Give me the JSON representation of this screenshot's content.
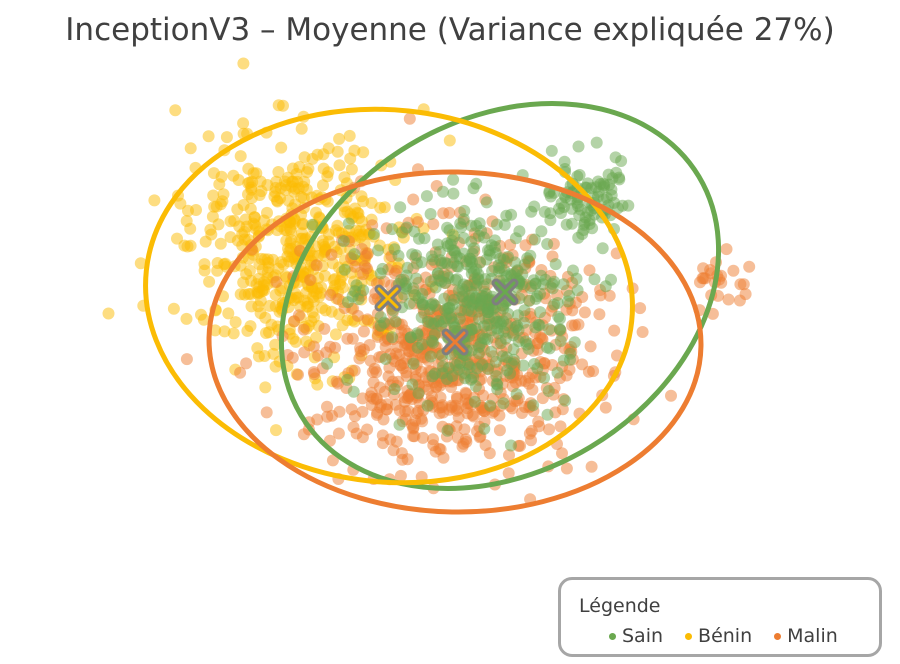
{
  "title": "InceptionV3 – Moyenne (Variance expliquée 27%)",
  "legend": {
    "title": "Légende",
    "items": [
      {
        "label": "Sain",
        "color": "#6aa84f"
      },
      {
        "label": "Bénin",
        "color": "#fbbc04"
      },
      {
        "label": "Malin",
        "color": "#ed7d31"
      }
    ]
  },
  "chart_data": {
    "type": "scatter",
    "title": "InceptionV3 – Moyenne (Variance expliquée 27%)",
    "axes_visible": false,
    "grid": false,
    "legend_position": "bottom-right",
    "series": [
      {
        "name": "Sain",
        "color": "#6aa84f",
        "centroid": [
          505,
          292
        ],
        "cluster": [
          {
            "cx": 470,
            "cy": 300,
            "rx": 95,
            "ry": 100,
            "n": 420
          },
          {
            "cx": 590,
            "cy": 200,
            "rx": 45,
            "ry": 45,
            "n": 90
          }
        ],
        "ellipse": {
          "cx": 500,
          "cy": 296,
          "rx": 232,
          "ry": 176,
          "rotation": -31
        }
      },
      {
        "name": "Bénin",
        "color": "#fbbc04",
        "centroid": [
          388,
          298
        ],
        "cluster": [
          {
            "cx": 300,
            "cy": 250,
            "rx": 110,
            "ry": 110,
            "n": 520
          }
        ],
        "ellipse": {
          "cx": 389,
          "cy": 296,
          "rx": 244,
          "ry": 186,
          "rotation": 6
        }
      },
      {
        "name": "Malin",
        "color": "#ed7d31",
        "centroid": [
          455,
          342
        ],
        "cluster": [
          {
            "cx": 450,
            "cy": 350,
            "rx": 140,
            "ry": 115,
            "n": 720
          },
          {
            "cx": 720,
            "cy": 280,
            "rx": 35,
            "ry": 25,
            "n": 25
          }
        ],
        "ellipse": {
          "cx": 455,
          "cy": 342,
          "rx": 246,
          "ry": 170,
          "rotation": 1
        }
      }
    ]
  }
}
